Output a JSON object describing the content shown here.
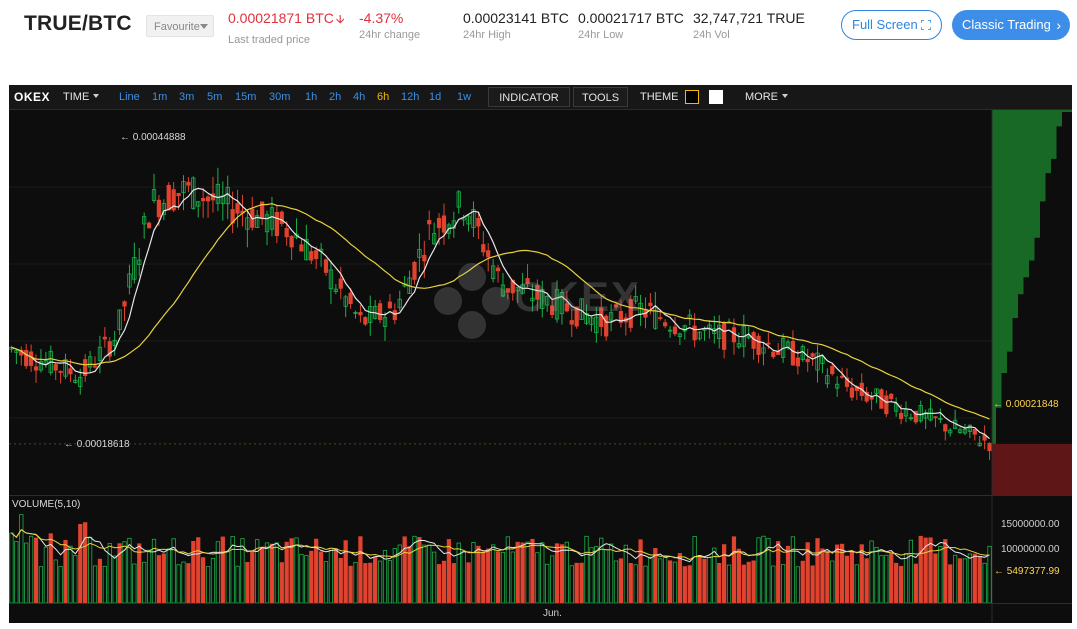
{
  "header": {
    "pair": "TRUE/BTC",
    "favourite_label": "Favourite",
    "last_price": "0.00021871 BTC",
    "last_price_label": "Last traded price",
    "change": "-4.37%",
    "change_label": "24hr change",
    "high": "0.00023141 BTC",
    "high_label": "24hr High",
    "low": "0.00021717 BTC",
    "low_label": "24hr Low",
    "vol": "32,747,721 TRUE",
    "vol_label": "24h Vol",
    "full_screen_label": "Full Screen",
    "classic_trading_label": "Classic Trading",
    "colors": {
      "down": "#e0313c",
      "accent": "#3d8ee8"
    }
  },
  "toolbar": {
    "logo": "OKEX",
    "time_label": "TIME",
    "periods": [
      "Line",
      "1m",
      "3m",
      "5m",
      "15m",
      "30m",
      "1h",
      "2h",
      "4h",
      "6h",
      "12h",
      "1d",
      "1w"
    ],
    "active_period": "6h",
    "indicator_label": "INDICATOR",
    "tools_label": "TOOLS",
    "theme_label": "THEME",
    "more_label": "MORE"
  },
  "chart": {
    "watermark": "OKEX",
    "high_marker": "← 0.00044888",
    "low_marker": "← 0.00018618",
    "last_price_marker": "← 0.00021848",
    "volume_title": "VOLUME(5,10)",
    "volume_ticks": [
      "15000000.00",
      "10000000.00"
    ],
    "volume_last": "← 5497377.99",
    "x_label": "Jun.",
    "colors": {
      "up": "#19b24a",
      "down": "#e0432f",
      "ma_short": "#e8e8e8",
      "ma_long": "#e8d23a",
      "depth_bid": "#1a7a2a",
      "depth_ask": "#7a1a1a"
    }
  },
  "chart_data": {
    "type": "candlestick",
    "price_unit": "BTC",
    "y_range": [
      0.00018,
      0.00047
    ],
    "period": "6h",
    "high": 0.00044888,
    "low": 0.00018618,
    "last": 0.00021848,
    "close_trend": [
      0.00029,
      0.00028,
      0.00027,
      0.0003,
      0.0004,
      0.00041,
      0.0004,
      0.00039,
      0.00038,
      0.00035,
      0.00031,
      0.00032,
      0.00038,
      0.0004,
      0.00034,
      0.00033,
      0.00032,
      0.00031,
      0.00032,
      0.00031,
      0.0003,
      0.0003,
      0.00029,
      0.00028,
      0.00026,
      0.00025,
      0.00024,
      0.00023,
      0.00022
    ],
    "volume_range": [
      0,
      18000000
    ],
    "volume_last": 5497377.99
  }
}
